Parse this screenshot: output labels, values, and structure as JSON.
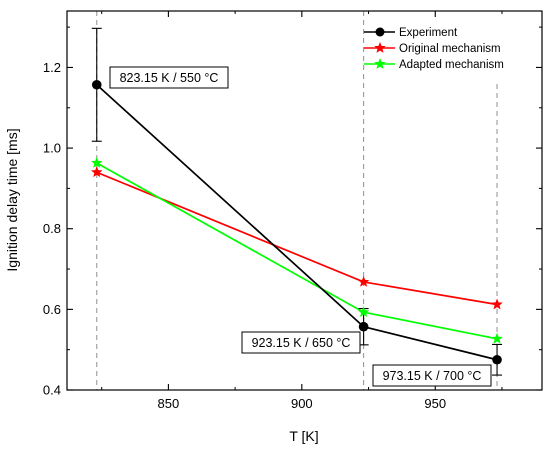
{
  "chart_data": {
    "type": "line",
    "xlabel": "T [K]",
    "ylabel": "Ignition delay time [ms]",
    "xlim": [
      812,
      990
    ],
    "ylim": [
      0.4,
      1.34
    ],
    "xticks": [
      850,
      900,
      950
    ],
    "yticks": [
      0.4,
      0.6,
      0.8,
      1.0,
      1.2
    ],
    "ytick_labels": [
      "0.4",
      "0.6",
      "0.8",
      "1.0",
      "1.2"
    ],
    "x": [
      823.15,
      923.15,
      973.15
    ],
    "series": [
      {
        "name": "Experiment",
        "color": "#000000",
        "marker": "circle",
        "values": [
          1.157,
          0.557,
          0.475
        ],
        "error": [
          0.14,
          0.045,
          0.038
        ]
      },
      {
        "name": "Original mechanism",
        "color": "#ff0000",
        "marker": "star",
        "values": [
          0.94,
          0.668,
          0.612
        ]
      },
      {
        "name": "Adapted mechanism",
        "color": "#00ff00",
        "marker": "star",
        "values": [
          0.963,
          0.593,
          0.527
        ]
      }
    ],
    "reference_lines_x": [
      823.15,
      923.15,
      973.15
    ],
    "annotations": [
      {
        "text": "823.15 K / 550 °C",
        "x": 823.15
      },
      {
        "text": "923.15 K / 650 °C",
        "x": 923.15
      },
      {
        "text": "973.15 K / 700 °C",
        "x": 973.15
      }
    ],
    "legend_position": "top-right",
    "grid": false
  }
}
